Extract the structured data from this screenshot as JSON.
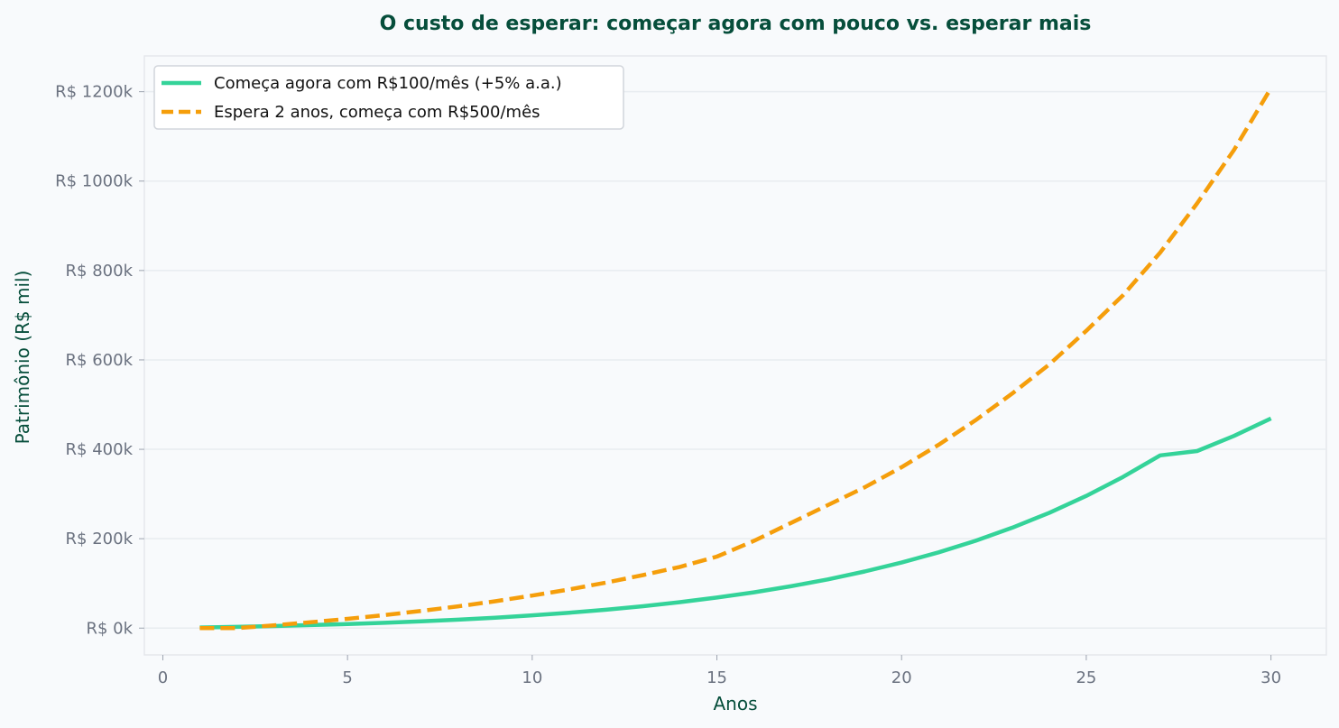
{
  "chart_data": {
    "type": "line",
    "title": "O custo de esperar: começar agora com pouco vs. esperar mais",
    "xlabel": "Anos",
    "ylabel": "Patrimônio (R$ mil)",
    "xlim": [
      -0.5,
      31.5
    ],
    "ylim": [
      -60,
      1280
    ],
    "xticks": [
      0,
      5,
      10,
      15,
      20,
      25,
      30
    ],
    "yticks": [
      0,
      200,
      400,
      600,
      800,
      1000,
      1200
    ],
    "ytick_labels": [
      "R$ 0k",
      "R$ 200k",
      "R$ 400k",
      "R$ 600k",
      "R$ 800k",
      "R$ 1000k",
      "R$ 1200k"
    ],
    "grid": "horizontal",
    "legend_position": "top-left",
    "x": [
      1,
      2,
      3,
      4,
      5,
      6,
      7,
      8,
      9,
      10,
      11,
      12,
      13,
      14,
      15,
      16,
      17,
      18,
      19,
      20,
      21,
      22,
      23,
      24,
      25,
      26,
      27,
      28,
      29,
      30
    ],
    "series": [
      {
        "name": "Começa agora com R$100/mês (+5% a.a.)",
        "color": "#34d399",
        "style": "solid",
        "values": [
          1.3,
          2.8,
          4.6,
          6.7,
          9.1,
          11.9,
          15.2,
          19.0,
          23.4,
          28.5,
          34.4,
          41.2,
          49.0,
          58.0,
          68.3,
          80.1,
          93.6,
          109.0,
          126.6,
          146.6,
          169.4,
          195.3,
          224.7,
          258.0,
          295.7,
          338.3,
          386.4,
          396.0,
          430.0,
          469.0
        ]
      },
      {
        "name": "Espera 2 anos, começa com R$500/mês",
        "color": "#f59e0b",
        "style": "dashed",
        "values": [
          0,
          0,
          6.2,
          13.1,
          20.7,
          29.1,
          38.4,
          48.7,
          60.1,
          72.7,
          86.5,
          101.8,
          118.5,
          136.9,
          160.0,
          195.0,
          235.0,
          275.0,
          315.0,
          360.0,
          410.0,
          465.0,
          525.0,
          590.0,
          665.0,
          745.0,
          840.0,
          950.0,
          1070.0,
          1208.0
        ]
      }
    ]
  }
}
